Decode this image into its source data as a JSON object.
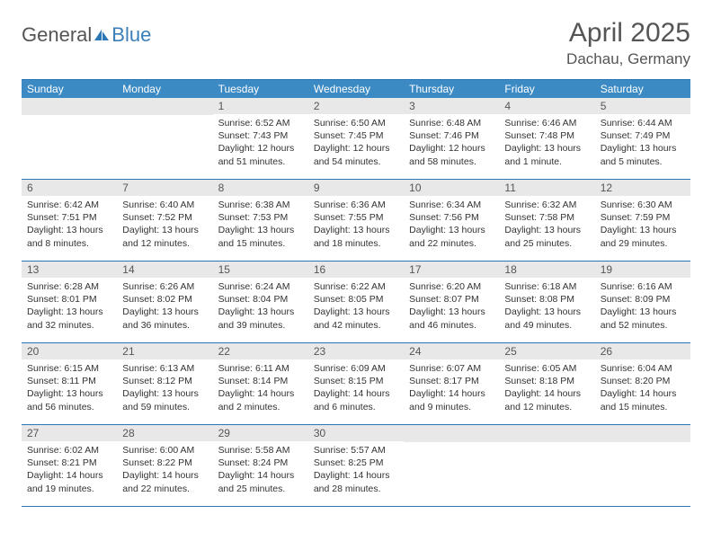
{
  "logo": {
    "word1": "General",
    "word2": "Blue"
  },
  "title": "April 2025",
  "location": "Dachau, Germany",
  "header_bg": "#3b8ac4",
  "border_color": "#2b77b5",
  "daynum_bg": "#e8e8e8",
  "weekdays": [
    "Sunday",
    "Monday",
    "Tuesday",
    "Wednesday",
    "Thursday",
    "Friday",
    "Saturday"
  ],
  "weeks": [
    [
      {
        "num": "",
        "sunrise": "",
        "sunset": "",
        "daylight": ""
      },
      {
        "num": "",
        "sunrise": "",
        "sunset": "",
        "daylight": ""
      },
      {
        "num": "1",
        "sunrise": "Sunrise: 6:52 AM",
        "sunset": "Sunset: 7:43 PM",
        "daylight": "Daylight: 12 hours and 51 minutes."
      },
      {
        "num": "2",
        "sunrise": "Sunrise: 6:50 AM",
        "sunset": "Sunset: 7:45 PM",
        "daylight": "Daylight: 12 hours and 54 minutes."
      },
      {
        "num": "3",
        "sunrise": "Sunrise: 6:48 AM",
        "sunset": "Sunset: 7:46 PM",
        "daylight": "Daylight: 12 hours and 58 minutes."
      },
      {
        "num": "4",
        "sunrise": "Sunrise: 6:46 AM",
        "sunset": "Sunset: 7:48 PM",
        "daylight": "Daylight: 13 hours and 1 minute."
      },
      {
        "num": "5",
        "sunrise": "Sunrise: 6:44 AM",
        "sunset": "Sunset: 7:49 PM",
        "daylight": "Daylight: 13 hours and 5 minutes."
      }
    ],
    [
      {
        "num": "6",
        "sunrise": "Sunrise: 6:42 AM",
        "sunset": "Sunset: 7:51 PM",
        "daylight": "Daylight: 13 hours and 8 minutes."
      },
      {
        "num": "7",
        "sunrise": "Sunrise: 6:40 AM",
        "sunset": "Sunset: 7:52 PM",
        "daylight": "Daylight: 13 hours and 12 minutes."
      },
      {
        "num": "8",
        "sunrise": "Sunrise: 6:38 AM",
        "sunset": "Sunset: 7:53 PM",
        "daylight": "Daylight: 13 hours and 15 minutes."
      },
      {
        "num": "9",
        "sunrise": "Sunrise: 6:36 AM",
        "sunset": "Sunset: 7:55 PM",
        "daylight": "Daylight: 13 hours and 18 minutes."
      },
      {
        "num": "10",
        "sunrise": "Sunrise: 6:34 AM",
        "sunset": "Sunset: 7:56 PM",
        "daylight": "Daylight: 13 hours and 22 minutes."
      },
      {
        "num": "11",
        "sunrise": "Sunrise: 6:32 AM",
        "sunset": "Sunset: 7:58 PM",
        "daylight": "Daylight: 13 hours and 25 minutes."
      },
      {
        "num": "12",
        "sunrise": "Sunrise: 6:30 AM",
        "sunset": "Sunset: 7:59 PM",
        "daylight": "Daylight: 13 hours and 29 minutes."
      }
    ],
    [
      {
        "num": "13",
        "sunrise": "Sunrise: 6:28 AM",
        "sunset": "Sunset: 8:01 PM",
        "daylight": "Daylight: 13 hours and 32 minutes."
      },
      {
        "num": "14",
        "sunrise": "Sunrise: 6:26 AM",
        "sunset": "Sunset: 8:02 PM",
        "daylight": "Daylight: 13 hours and 36 minutes."
      },
      {
        "num": "15",
        "sunrise": "Sunrise: 6:24 AM",
        "sunset": "Sunset: 8:04 PM",
        "daylight": "Daylight: 13 hours and 39 minutes."
      },
      {
        "num": "16",
        "sunrise": "Sunrise: 6:22 AM",
        "sunset": "Sunset: 8:05 PM",
        "daylight": "Daylight: 13 hours and 42 minutes."
      },
      {
        "num": "17",
        "sunrise": "Sunrise: 6:20 AM",
        "sunset": "Sunset: 8:07 PM",
        "daylight": "Daylight: 13 hours and 46 minutes."
      },
      {
        "num": "18",
        "sunrise": "Sunrise: 6:18 AM",
        "sunset": "Sunset: 8:08 PM",
        "daylight": "Daylight: 13 hours and 49 minutes."
      },
      {
        "num": "19",
        "sunrise": "Sunrise: 6:16 AM",
        "sunset": "Sunset: 8:09 PM",
        "daylight": "Daylight: 13 hours and 52 minutes."
      }
    ],
    [
      {
        "num": "20",
        "sunrise": "Sunrise: 6:15 AM",
        "sunset": "Sunset: 8:11 PM",
        "daylight": "Daylight: 13 hours and 56 minutes."
      },
      {
        "num": "21",
        "sunrise": "Sunrise: 6:13 AM",
        "sunset": "Sunset: 8:12 PM",
        "daylight": "Daylight: 13 hours and 59 minutes."
      },
      {
        "num": "22",
        "sunrise": "Sunrise: 6:11 AM",
        "sunset": "Sunset: 8:14 PM",
        "daylight": "Daylight: 14 hours and 2 minutes."
      },
      {
        "num": "23",
        "sunrise": "Sunrise: 6:09 AM",
        "sunset": "Sunset: 8:15 PM",
        "daylight": "Daylight: 14 hours and 6 minutes."
      },
      {
        "num": "24",
        "sunrise": "Sunrise: 6:07 AM",
        "sunset": "Sunset: 8:17 PM",
        "daylight": "Daylight: 14 hours and 9 minutes."
      },
      {
        "num": "25",
        "sunrise": "Sunrise: 6:05 AM",
        "sunset": "Sunset: 8:18 PM",
        "daylight": "Daylight: 14 hours and 12 minutes."
      },
      {
        "num": "26",
        "sunrise": "Sunrise: 6:04 AM",
        "sunset": "Sunset: 8:20 PM",
        "daylight": "Daylight: 14 hours and 15 minutes."
      }
    ],
    [
      {
        "num": "27",
        "sunrise": "Sunrise: 6:02 AM",
        "sunset": "Sunset: 8:21 PM",
        "daylight": "Daylight: 14 hours and 19 minutes."
      },
      {
        "num": "28",
        "sunrise": "Sunrise: 6:00 AM",
        "sunset": "Sunset: 8:22 PM",
        "daylight": "Daylight: 14 hours and 22 minutes."
      },
      {
        "num": "29",
        "sunrise": "Sunrise: 5:58 AM",
        "sunset": "Sunset: 8:24 PM",
        "daylight": "Daylight: 14 hours and 25 minutes."
      },
      {
        "num": "30",
        "sunrise": "Sunrise: 5:57 AM",
        "sunset": "Sunset: 8:25 PM",
        "daylight": "Daylight: 14 hours and 28 minutes."
      },
      {
        "num": "",
        "sunrise": "",
        "sunset": "",
        "daylight": ""
      },
      {
        "num": "",
        "sunrise": "",
        "sunset": "",
        "daylight": ""
      },
      {
        "num": "",
        "sunrise": "",
        "sunset": "",
        "daylight": ""
      }
    ]
  ]
}
